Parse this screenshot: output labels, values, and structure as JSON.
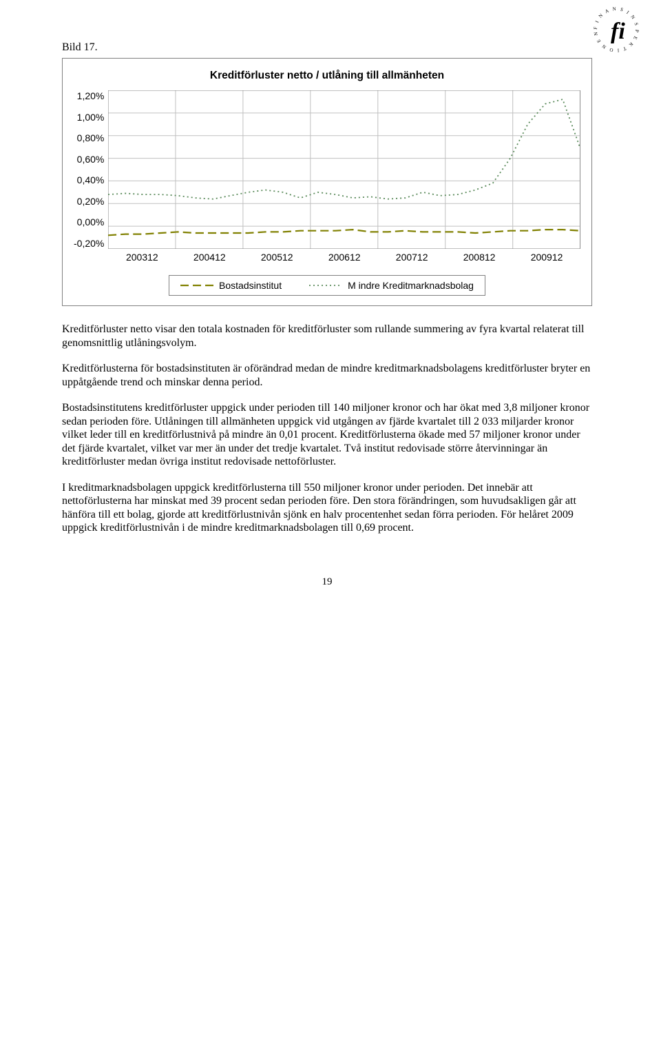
{
  "logo": {
    "text_top": "FINANSINSPEKTIONEN",
    "color": "#000000"
  },
  "figure_label": "Bild 17.",
  "chart": {
    "type": "line",
    "title": "Kreditförluster netto / utlåning till allmänheten",
    "title_fontsize": 15.5,
    "ylabel_fontsize": 14,
    "xlabel_fontsize": 14,
    "ylim": [
      -0.2,
      1.2
    ],
    "ytick_step": 0.2,
    "ytick_labels": [
      "1,20%",
      "1,00%",
      "0,80%",
      "0,60%",
      "0,40%",
      "0,20%",
      "0,00%",
      "-0,20%"
    ],
    "x_categories": [
      "200312",
      "200412",
      "200512",
      "200612",
      "200712",
      "200812",
      "200912"
    ],
    "grid_color": "#c0c0c0",
    "background_color": "#ffffff",
    "border_color": "#808080",
    "series": [
      {
        "name": "Bostadsinstitut",
        "legend_label": "Bostadsinstitut",
        "color": "#808000",
        "dash": "12,6",
        "stroke_width": 2.2,
        "values": [
          -0.08,
          -0.07,
          -0.07,
          -0.06,
          -0.05,
          -0.06,
          -0.06,
          -0.06,
          -0.06,
          -0.05,
          -0.05,
          -0.04,
          -0.04,
          -0.04,
          -0.03,
          -0.05,
          -0.05,
          -0.04,
          -0.05,
          -0.05,
          -0.05,
          -0.06,
          -0.05,
          -0.04,
          -0.04,
          -0.03,
          -0.03,
          -0.04
        ]
      },
      {
        "name": "Mindre Kreditmarknadsbolag",
        "legend_label": "M indre Kreditmarknadsbolag",
        "color": "#5a8a5a",
        "dash": "2,4",
        "stroke_width": 1.8,
        "values": [
          0.28,
          0.29,
          0.28,
          0.28,
          0.27,
          0.25,
          0.24,
          0.27,
          0.3,
          0.32,
          0.3,
          0.25,
          0.3,
          0.28,
          0.25,
          0.26,
          0.24,
          0.25,
          0.3,
          0.27,
          0.28,
          0.32,
          0.38,
          0.6,
          0.9,
          1.08,
          1.12,
          0.69
        ]
      }
    ],
    "legend": {
      "border_color": "#808080",
      "font_size": 14
    }
  },
  "paragraphs": [
    "Kreditförluster netto visar den totala kostnaden för kreditförluster som rullande summering av fyra kvartal relaterat till genomsnittlig utlåningsvolym.",
    "Kreditförlusterna för bostadsinstituten är oförändrad medan de mindre kreditmarknadsbolagens kreditförluster bryter en uppåtgående trend och minskar denna period.",
    "Bostadsinstitutens kreditförluster uppgick under perioden till 140 miljoner kronor och har ökat med 3,8 miljoner kronor sedan perioden före. Utlåningen till allmänheten uppgick vid utgången av fjärde kvartalet till 2 033 miljarder kronor vilket leder till en kreditförlustnivå på mindre än 0,01 procent. Kreditförlusterna ökade med 57 miljoner kronor under det fjärde kvartalet, vilket var mer än under det tredje kvartalet. Två institut redovisade större återvinningar än kreditförluster medan övriga institut redovisade nettoförluster.",
    "I kreditmarknadsbolagen uppgick kreditförlusterna till 550 miljoner kronor under perioden. Det innebär att nettoförlusterna har minskat med 39 procent sedan perioden före. Den stora förändringen, som huvudsakligen går att hänföra till ett bolag, gjorde att kreditförlustnivån sjönk en halv procentenhet sedan förra perioden. För helåret 2009 uppgick kreditförlustnivån i de mindre kreditmarknadsbolagen till 0,69 procent."
  ],
  "page_number": "19"
}
